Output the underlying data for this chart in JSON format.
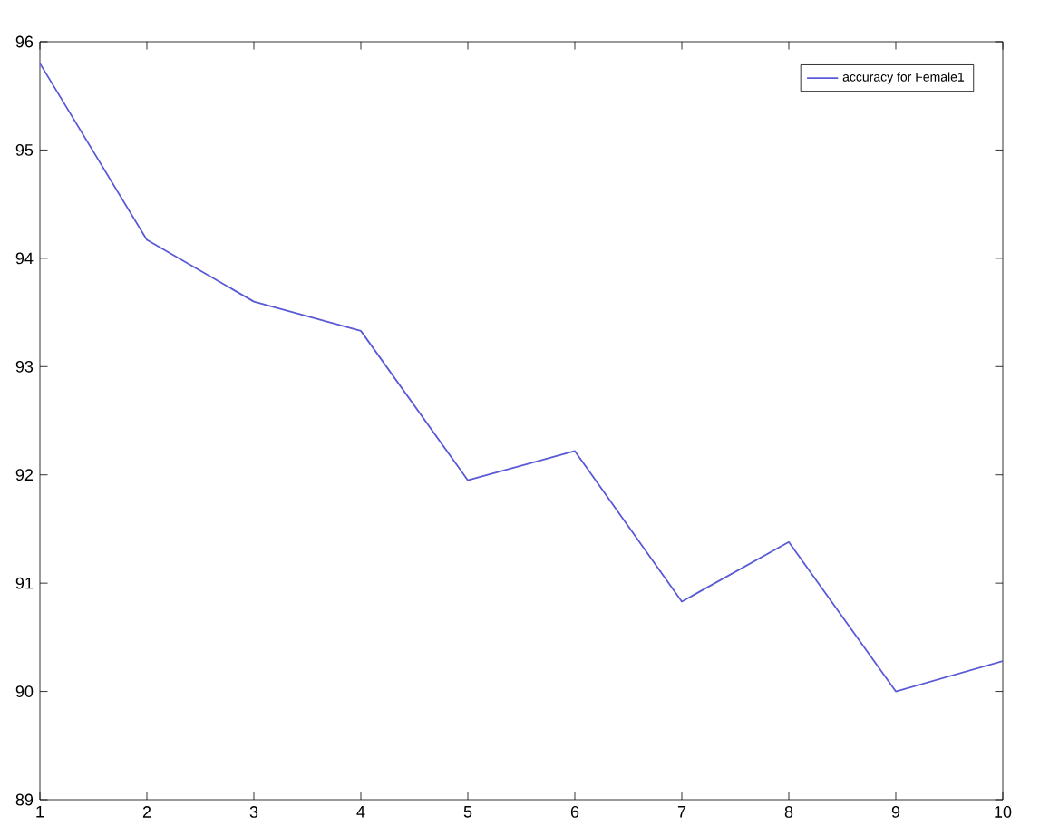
{
  "chart_data": {
    "type": "line",
    "x": [
      1,
      2,
      3,
      4,
      5,
      6,
      7,
      8,
      9,
      10
    ],
    "series": [
      {
        "name": "accuracy for Female1",
        "color": "#5a5ad6",
        "values": [
          95.8,
          94.17,
          93.6,
          93.33,
          91.95,
          92.22,
          90.83,
          91.38,
          90.0,
          90.28
        ]
      }
    ],
    "xlim": [
      1,
      10
    ],
    "ylim": [
      89,
      96
    ],
    "xticks": [
      1,
      2,
      3,
      4,
      5,
      6,
      7,
      8,
      9,
      10
    ],
    "yticks": [
      89,
      90,
      91,
      92,
      93,
      94,
      95,
      96
    ],
    "legend": "top right",
    "grid": false,
    "marker": "none",
    "line_style": "solid"
  }
}
